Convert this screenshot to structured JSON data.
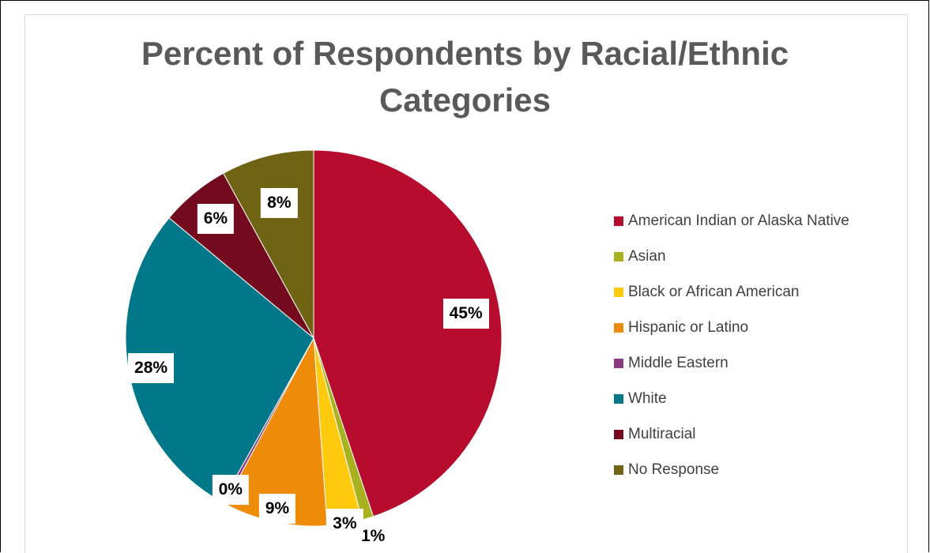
{
  "chart_data": {
    "type": "pie",
    "title": "Percent of Respondents by Racial/Ethnic Categories",
    "title_lines": [
      "Percent of Respondents by Racial/Ethnic",
      "Categories"
    ],
    "legend_position": "right",
    "slices": [
      {
        "label": "American Indian or Alaska Native",
        "value": 45,
        "display": "45%",
        "color": "#b80c2f"
      },
      {
        "label": "Asian",
        "value": 1,
        "display": "1%",
        "color": "#a8b11f"
      },
      {
        "label": "Black or African American",
        "value": 3,
        "display": "3%",
        "color": "#ffc90e"
      },
      {
        "label": "Hispanic or Latino",
        "value": 9,
        "display": "9%",
        "color": "#ee8c0a"
      },
      {
        "label": "Middle Eastern",
        "value": 0.3,
        "display": "0%",
        "color": "#8e3a80"
      },
      {
        "label": "White",
        "value": 28,
        "display": "28%",
        "color": "#00788a"
      },
      {
        "label": "Multiracial",
        "value": 6,
        "display": "6%",
        "color": "#730a1e"
      },
      {
        "label": "No Response",
        "value": 8,
        "display": "8%",
        "color": "#6e6414"
      }
    ]
  }
}
